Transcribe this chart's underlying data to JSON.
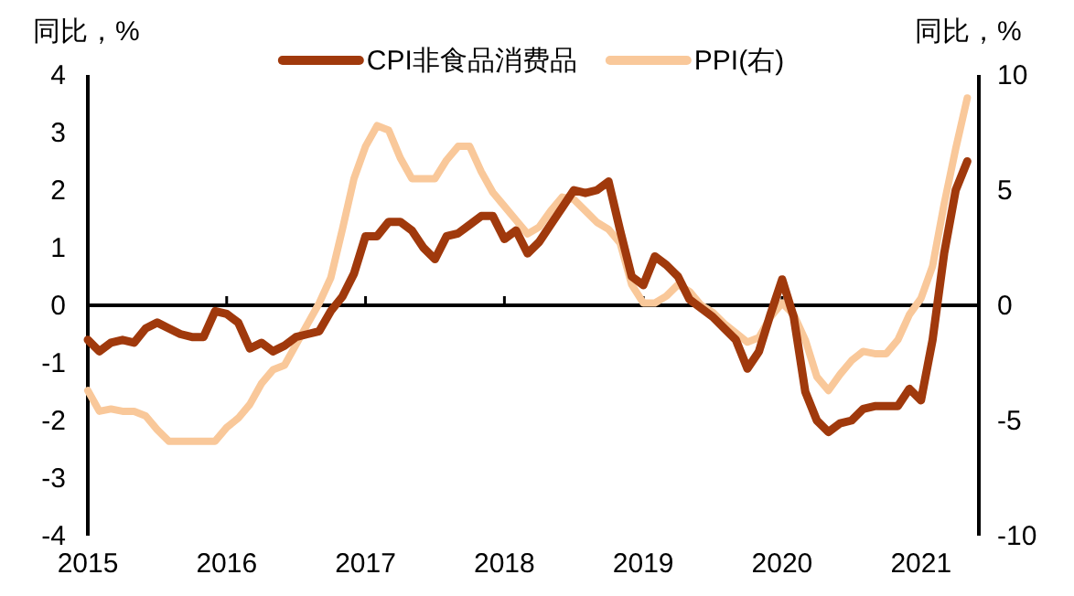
{
  "chart_data": {
    "type": "line",
    "ylabel": "同比，%",
    "y2label": "同比，%",
    "legend": "top",
    "line_style": "solid",
    "marker": "none",
    "x": [
      "2015-01",
      "2015-02",
      "2015-03",
      "2015-04",
      "2015-05",
      "2015-06",
      "2015-07",
      "2015-08",
      "2015-09",
      "2015-10",
      "2015-11",
      "2015-12",
      "2016-01",
      "2016-02",
      "2016-03",
      "2016-04",
      "2016-05",
      "2016-06",
      "2016-07",
      "2016-08",
      "2016-09",
      "2016-10",
      "2016-11",
      "2016-12",
      "2017-01",
      "2017-02",
      "2017-03",
      "2017-04",
      "2017-05",
      "2017-06",
      "2017-07",
      "2017-08",
      "2017-09",
      "2017-10",
      "2017-11",
      "2017-12",
      "2018-01",
      "2018-02",
      "2018-03",
      "2018-04",
      "2018-05",
      "2018-06",
      "2018-07",
      "2018-08",
      "2018-09",
      "2018-10",
      "2018-11",
      "2018-12",
      "2019-01",
      "2019-02",
      "2019-03",
      "2019-04",
      "2019-05",
      "2019-06",
      "2019-07",
      "2019-08",
      "2019-09",
      "2019-10",
      "2019-11",
      "2019-12",
      "2020-01",
      "2020-02",
      "2020-03",
      "2020-04",
      "2020-05",
      "2020-06",
      "2020-07",
      "2020-08",
      "2020-09",
      "2020-10",
      "2020-11",
      "2020-12",
      "2021-01",
      "2021-02",
      "2021-03",
      "2021-04",
      "2021-05"
    ],
    "series": [
      {
        "name": "CPI非食品消费品",
        "color": "#a0390c",
        "values": [
          -0.6,
          -0.8,
          -0.65,
          -0.6,
          -0.65,
          -0.4,
          -0.3,
          -0.4,
          -0.5,
          -0.55,
          -0.55,
          -0.1,
          -0.15,
          -0.3,
          -0.75,
          -0.65,
          -0.8,
          -0.7,
          -0.55,
          -0.5,
          -0.45,
          -0.1,
          0.15,
          0.55,
          1.2,
          1.2,
          1.45,
          1.45,
          1.3,
          1.0,
          0.8,
          1.2,
          1.25,
          1.4,
          1.55,
          1.55,
          1.15,
          1.3,
          0.9,
          1.1,
          1.4,
          1.7,
          2.0,
          1.95,
          2.0,
          2.15,
          1.3,
          0.5,
          0.35,
          0.85,
          0.7,
          0.5,
          0.1,
          -0.05,
          -0.2,
          -0.4,
          -0.6,
          -1.1,
          -0.8,
          -0.15,
          0.45,
          -0.2,
          -1.5,
          -2.0,
          -2.2,
          -2.05,
          -2.0,
          -1.8,
          -1.75,
          -1.75,
          -1.75,
          -1.45,
          -1.65,
          -0.6,
          0.9,
          2.0,
          2.5
        ]
      },
      {
        "name": "PPI(右)",
        "color": "#f9c89a",
        "axis": "y2",
        "values": [
          -3.7,
          -4.6,
          -4.5,
          -4.6,
          -4.6,
          -4.8,
          -5.4,
          -5.9,
          -5.9,
          -5.9,
          -5.9,
          -5.9,
          -5.3,
          -4.9,
          -4.3,
          -3.4,
          -2.8,
          -2.6,
          -1.7,
          -0.8,
          0.1,
          1.2,
          3.3,
          5.5,
          6.9,
          7.8,
          7.6,
          6.4,
          5.5,
          5.5,
          5.5,
          6.3,
          6.9,
          6.9,
          5.8,
          4.9,
          4.3,
          3.7,
          3.1,
          3.4,
          4.1,
          4.7,
          4.6,
          4.1,
          3.6,
          3.3,
          2.7,
          0.9,
          0.1,
          0.1,
          0.4,
          0.9,
          0.6,
          0,
          -0.3,
          -0.8,
          -1.2,
          -1.6,
          -1.4,
          -0.5,
          0.1,
          -0.4,
          -1.5,
          -3.1,
          -3.7,
          -3.0,
          -2.4,
          -2.0,
          -2.1,
          -2.1,
          -1.5,
          -0.4,
          0.3,
          1.7,
          4.4,
          6.8,
          9.0
        ]
      }
    ],
    "xlim": [
      "2015-01",
      "2021-06"
    ],
    "xticks": [
      {
        "value": "2015",
        "label": "2015"
      },
      {
        "value": "2016",
        "label": "2016"
      },
      {
        "value": "2017",
        "label": "2017"
      },
      {
        "value": "2018",
        "label": "2018"
      },
      {
        "value": "2019",
        "label": "2019"
      },
      {
        "value": "2020",
        "label": "2020"
      },
      {
        "value": "2021",
        "label": "2021"
      }
    ],
    "ylim": [
      -4,
      4
    ],
    "yticks": [
      -4,
      -3,
      -2,
      -1,
      0,
      1,
      2,
      3,
      4
    ],
    "y2lim": [
      -10,
      10
    ],
    "y2ticks": [
      -10,
      -5,
      0,
      5,
      10
    ]
  }
}
